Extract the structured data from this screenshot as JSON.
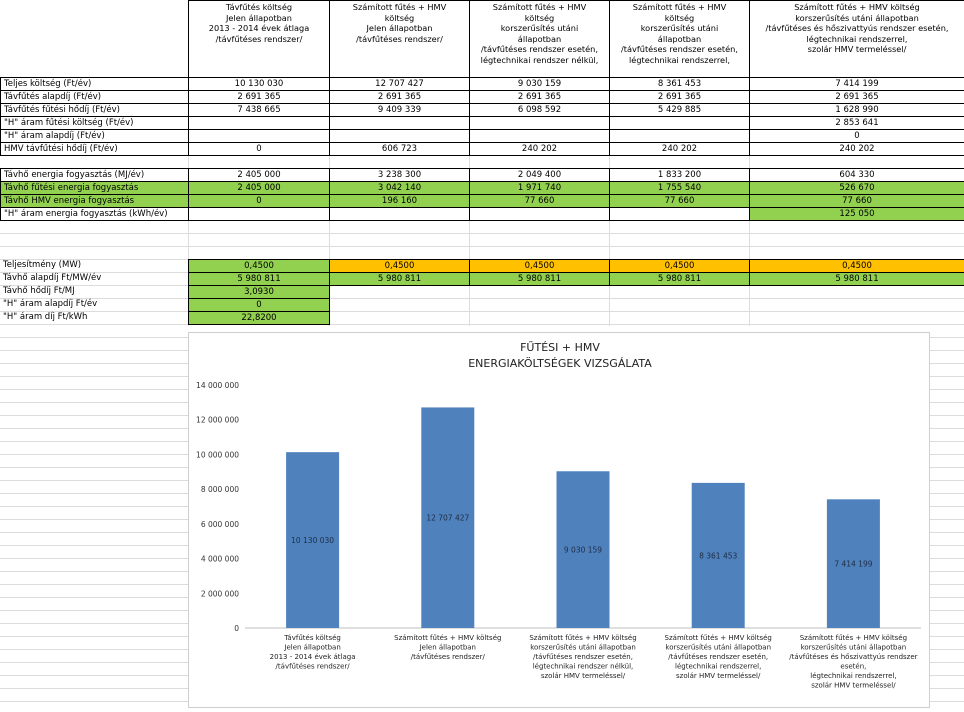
{
  "headers": [
    "Távfűtés költség\nJelen állapotban\n2013 - 2014 évek átlaga\n/távfűtéses rendszer/",
    "Számított fűtés + HMV\nköltség\nJelen állapotban\n/távfűtéses rendszer/",
    "Számított fűtés + HMV\nköltség\nkorszerűsítés utáni\nállapotban\n/távfűtéses rendszer esetén,\nlégtechnikai rendszer nélkül,",
    "Számított fűtés + HMV\nköltség\nkorszerűsítés utáni\nállapotban\n/távfűtéses rendszer esetén,\nlégtechnikai rendszerrel,",
    "Számított fűtés + HMV költség\nkorszerűsítés utáni állapotban\n/távfűtéses és hőszivattyús rendszer esetén,\nlégtechnikai rendszerrel,\nszolár HMV termeléssel/"
  ],
  "rows_a": [
    {
      "label": "Teljes költség (Ft/év)",
      "values": [
        "10 130 030",
        "12 707 427",
        "9 030 159",
        "8 361 453",
        "7 414 199"
      ]
    },
    {
      "label": "Távfűtés alapdíj (Ft/év)",
      "values": [
        "2 691 365",
        "2 691 365",
        "2 691 365",
        "2 691 365",
        "2 691 365"
      ]
    },
    {
      "label": "Távfűtés fűtési hődíj (Ft/év)",
      "values": [
        "7 438 665",
        "9 409 339",
        "6 098 592",
        "5 429 885",
        "1 628 990"
      ]
    },
    {
      "label": "\"H\" áram fűtési költség (Ft/év)",
      "values": [
        "",
        "",
        "",
        "",
        "2 853 641"
      ]
    },
    {
      "label": "\"H\" áram alapdíj (Ft/év)",
      "values": [
        "",
        "",
        "",
        "",
        "0"
      ]
    },
    {
      "label": "HMV távfűtési hődíj (Ft/év)",
      "values": [
        "0",
        "606 723",
        "240 202",
        "240 202",
        "240 202"
      ]
    }
  ],
  "rows_b": [
    {
      "label": "Távhő energia fogyasztás (MJ/év)",
      "values": [
        "2 405 000",
        "3 238 300",
        "2 049 400",
        "1 833 200",
        "604 330"
      ],
      "green": [
        false,
        false,
        false,
        false,
        false
      ]
    },
    {
      "label": "Távhő fűtési energia fogyasztás",
      "values": [
        "2 405 000",
        "3 042 140",
        "1 971 740",
        "1 755 540",
        "526 670"
      ],
      "green": [
        true,
        true,
        true,
        true,
        true
      ]
    },
    {
      "label": "Távhő HMV energia fogyasztás",
      "values": [
        "0",
        "196 160",
        "77 660",
        "77 660",
        "77 660"
      ],
      "green": [
        true,
        true,
        true,
        true,
        true
      ]
    },
    {
      "label": "\"H\" áram energia fogyasztás (kWh/év)",
      "values": [
        "",
        "",
        "",
        "",
        "125 050"
      ],
      "green": [
        false,
        false,
        false,
        false,
        true
      ]
    }
  ],
  "rows_c": [
    {
      "label": "Teljesítmény (MW)",
      "values": [
        "0,4500",
        "0,4500",
        "0,4500",
        "0,4500",
        "0,4500"
      ]
    },
    {
      "label": "Távhő alapdíj Ft/MW/év",
      "values": [
        "5 980 811",
        "5 980 811",
        "5 980 811",
        "5 980 811",
        "5 980 811"
      ]
    },
    {
      "label": "Távhő hődíj Ft/MJ",
      "values": [
        "3,0930"
      ]
    },
    {
      "label": "\"H\" áram alapdíj Ft/év",
      "values": [
        "0"
      ]
    },
    {
      "label": "\"H\" áram díj Ft/kWh",
      "values": [
        "22,8200"
      ]
    }
  ],
  "colors": {
    "green": "#92d050",
    "orange": "#ffc000",
    "bar": "#4f81bd"
  },
  "chart_data": {
    "type": "bar",
    "title": "FŰTÉSI + HMV\nENERGIAKÖLTSÉGEK VIZSGÁLATA",
    "categories": [
      "Távfűtés költség\nJelen állapotban\n2013 - 2014 évek átlaga\n/távfűtéses rendszer/",
      "Számított fűtés + HMV költség\nJelen állapotban\n/távfűtéses rendszer/",
      "Számított fűtés + HMV költség\nkorszerűsítés utáni állapotban\n/távfűtéses rendszer esetén,\nlégtechnikai rendszer nélkül,\nszolár HMV termeléssel/",
      "Számított fűtés + HMV költség\nkorszerűsítés utáni állapotban\n/távfűtéses rendszer esetén,\nlégtechnikai rendszerrel,\nszolár HMV termeléssel/",
      "Számított fűtés + HMV költség\nkorszerűsítés utáni állapotban\n/távfűtéses és hőszivattyús rendszer\nesetén,\nlégtechnikai rendszerrel,\nszolár HMV termeléssel/"
    ],
    "values": [
      10130030,
      12707427,
      9030159,
      8361453,
      7414199
    ],
    "data_labels": [
      "10 130 030",
      "12 707 427",
      "9 030 159",
      "8 361 453",
      "7 414 199"
    ],
    "yticks": [
      0,
      2000000,
      4000000,
      6000000,
      8000000,
      10000000,
      12000000,
      14000000
    ],
    "ytick_labels": [
      "0",
      "2 000 000",
      "4 000 000",
      "6 000 000",
      "8 000 000",
      "10 000 000",
      "12 000 000",
      "14 000 000"
    ],
    "ylim": [
      0,
      14000000
    ],
    "grid": false,
    "legend": "none"
  }
}
